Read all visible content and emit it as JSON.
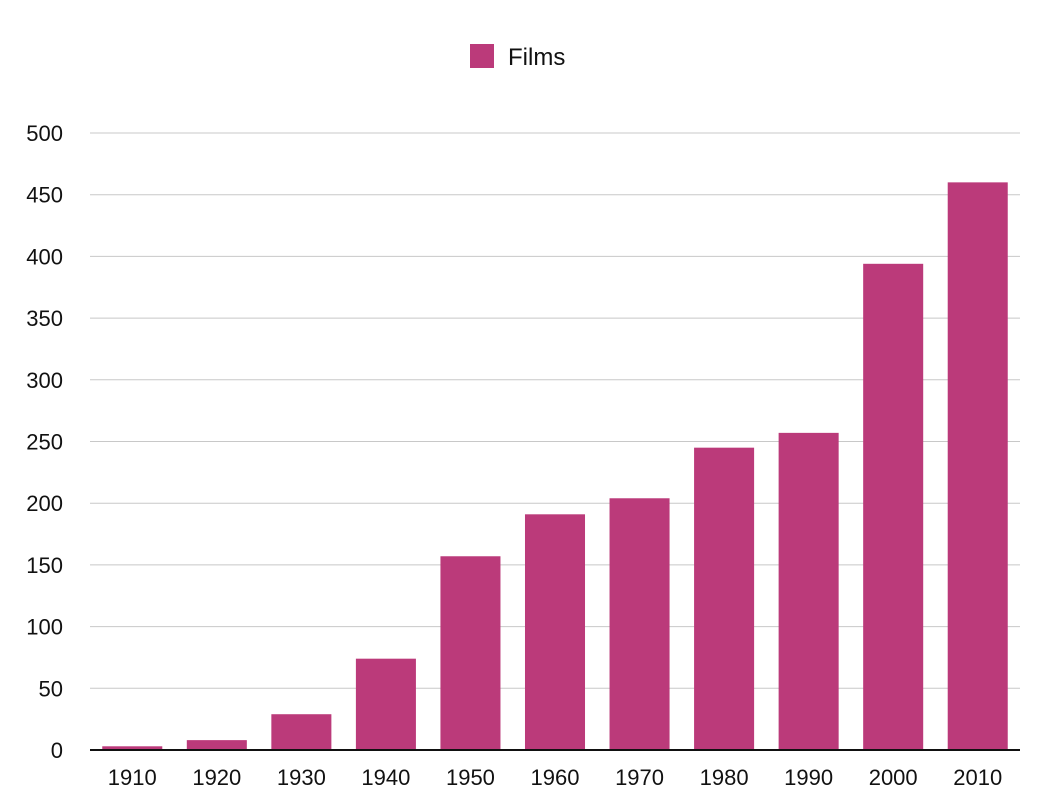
{
  "chart_data": {
    "type": "bar",
    "title": "",
    "xlabel": "",
    "ylabel": "",
    "categories": [
      "1910",
      "1920",
      "1930",
      "1940",
      "1950",
      "1960",
      "1970",
      "1980",
      "1990",
      "2000",
      "2010"
    ],
    "series": [
      {
        "name": "Films",
        "color": "#bb3a7a",
        "values": [
          3,
          8,
          29,
          74,
          157,
          191,
          204,
          245,
          257,
          394,
          460
        ]
      }
    ],
    "ylim": [
      0,
      500
    ],
    "yticks": [
      0,
      50,
      100,
      150,
      200,
      250,
      300,
      350,
      400,
      450,
      500
    ],
    "grid": true,
    "legend_position": "top-center"
  }
}
